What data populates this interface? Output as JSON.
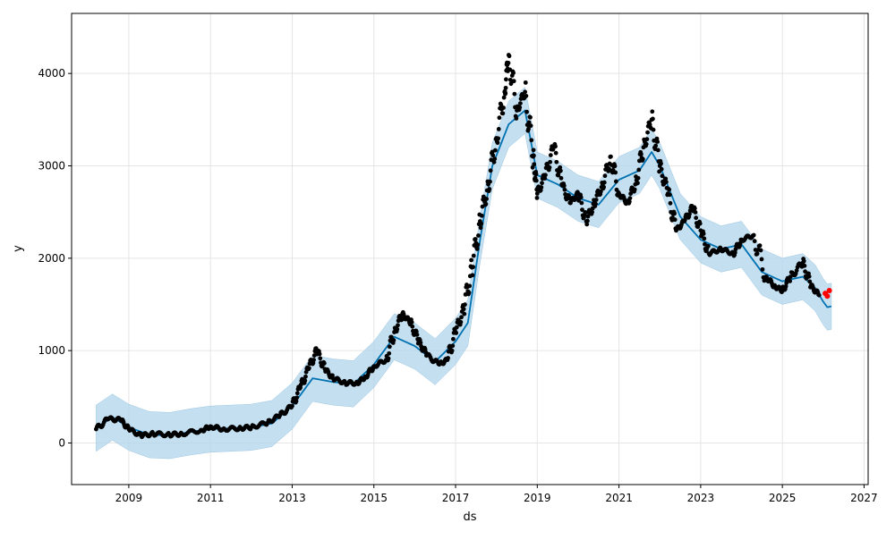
{
  "chart_data": {
    "type": "line",
    "xlabel": "ds",
    "ylabel": "y",
    "x_ticks": [
      "2009",
      "2011",
      "2013",
      "2015",
      "2017",
      "2019",
      "2021",
      "2023",
      "2025",
      "2027"
    ],
    "y_ticks": [
      "0",
      "1000",
      "2000",
      "3000",
      "4000"
    ],
    "xlim": [
      2007.6,
      2027.1
    ],
    "ylim": [
      -450,
      4650
    ],
    "grid": true,
    "colors": {
      "forecast_line": "#0072b2",
      "uncertainty_band": "#b0d4eb",
      "observed_points": "#000000",
      "highlight_points": "#ff0000"
    },
    "series": [
      {
        "kind": "observed",
        "points": [
          [
            2008.2,
            150
          ],
          [
            2008.5,
            260
          ],
          [
            2008.8,
            250
          ],
          [
            2009.0,
            150
          ],
          [
            2009.3,
            80
          ],
          [
            2009.6,
            100
          ],
          [
            2010.0,
            90
          ],
          [
            2010.3,
            100
          ],
          [
            2010.8,
            140
          ],
          [
            2011.0,
            180
          ],
          [
            2011.3,
            150
          ],
          [
            2011.7,
            160
          ],
          [
            2012.0,
            170
          ],
          [
            2012.4,
            220
          ],
          [
            2012.7,
            300
          ],
          [
            2013.0,
            400
          ],
          [
            2013.2,
            600
          ],
          [
            2013.4,
            800
          ],
          [
            2013.6,
            1000
          ],
          [
            2013.8,
            800
          ],
          [
            2014.0,
            700
          ],
          [
            2014.3,
            650
          ],
          [
            2014.6,
            650
          ],
          [
            2014.8,
            720
          ],
          [
            2015.0,
            830
          ],
          [
            2015.3,
            900
          ],
          [
            2015.5,
            1200
          ],
          [
            2015.7,
            1400
          ],
          [
            2015.9,
            1300
          ],
          [
            2016.1,
            1100
          ],
          [
            2016.3,
            950
          ],
          [
            2016.6,
            850
          ],
          [
            2016.8,
            900
          ],
          [
            2017.0,
            1200
          ],
          [
            2017.2,
            1450
          ],
          [
            2017.4,
            1900
          ],
          [
            2017.6,
            2400
          ],
          [
            2017.8,
            2800
          ],
          [
            2018.0,
            3300
          ],
          [
            2018.2,
            3800
          ],
          [
            2018.3,
            4200
          ],
          [
            2018.5,
            3600
          ],
          [
            2018.7,
            3800
          ],
          [
            2018.9,
            3100
          ],
          [
            2019.0,
            2700
          ],
          [
            2019.2,
            2900
          ],
          [
            2019.4,
            3200
          ],
          [
            2019.6,
            2800
          ],
          [
            2019.8,
            2600
          ],
          [
            2020.0,
            2700
          ],
          [
            2020.2,
            2400
          ],
          [
            2020.4,
            2600
          ],
          [
            2020.6,
            2800
          ],
          [
            2020.8,
            3100
          ],
          [
            2021.0,
            2700
          ],
          [
            2021.2,
            2600
          ],
          [
            2021.4,
            2800
          ],
          [
            2021.6,
            3200
          ],
          [
            2021.8,
            3500
          ],
          [
            2022.0,
            3000
          ],
          [
            2022.2,
            2700
          ],
          [
            2022.4,
            2300
          ],
          [
            2022.6,
            2400
          ],
          [
            2022.8,
            2550
          ],
          [
            2023.0,
            2300
          ],
          [
            2023.2,
            2050
          ],
          [
            2023.5,
            2100
          ],
          [
            2023.8,
            2050
          ],
          [
            2024.0,
            2200
          ],
          [
            2024.3,
            2250
          ],
          [
            2024.6,
            1800
          ],
          [
            2024.8,
            1700
          ],
          [
            2025.0,
            1650
          ],
          [
            2025.2,
            1800
          ],
          [
            2025.5,
            1950
          ],
          [
            2025.7,
            1700
          ],
          [
            2025.9,
            1600
          ]
        ]
      },
      {
        "kind": "recent",
        "points": [
          [
            2026.05,
            1620
          ],
          [
            2026.1,
            1590
          ],
          [
            2026.15,
            1650
          ]
        ]
      },
      {
        "kind": "forecast",
        "points": [
          [
            2008.2,
            160
          ],
          [
            2008.6,
            280
          ],
          [
            2009.0,
            170
          ],
          [
            2009.5,
            90
          ],
          [
            2010.0,
            80
          ],
          [
            2010.5,
            120
          ],
          [
            2011.0,
            150
          ],
          [
            2011.5,
            160
          ],
          [
            2012.0,
            170
          ],
          [
            2012.5,
            210
          ],
          [
            2013.0,
            400
          ],
          [
            2013.5,
            700
          ],
          [
            2014.0,
            660
          ],
          [
            2014.5,
            640
          ],
          [
            2015.0,
            850
          ],
          [
            2015.5,
            1150
          ],
          [
            2016.0,
            1050
          ],
          [
            2016.5,
            880
          ],
          [
            2017.0,
            1100
          ],
          [
            2017.3,
            1300
          ],
          [
            2017.6,
            2200
          ],
          [
            2017.9,
            3000
          ],
          [
            2018.3,
            3450
          ],
          [
            2018.7,
            3600
          ],
          [
            2019.0,
            2900
          ],
          [
            2019.5,
            2800
          ],
          [
            2020.0,
            2650
          ],
          [
            2020.5,
            2580
          ],
          [
            2021.0,
            2850
          ],
          [
            2021.5,
            2950
          ],
          [
            2021.8,
            3150
          ],
          [
            2022.0,
            3000
          ],
          [
            2022.5,
            2450
          ],
          [
            2023.0,
            2200
          ],
          [
            2023.5,
            2100
          ],
          [
            2024.0,
            2150
          ],
          [
            2024.5,
            1850
          ],
          [
            2025.0,
            1750
          ],
          [
            2025.5,
            1800
          ],
          [
            2025.8,
            1680
          ],
          [
            2026.0,
            1530
          ],
          [
            2026.1,
            1470
          ],
          [
            2026.2,
            1480
          ]
        ]
      }
    ],
    "uncertainty_band_halfwidth": 250
  }
}
